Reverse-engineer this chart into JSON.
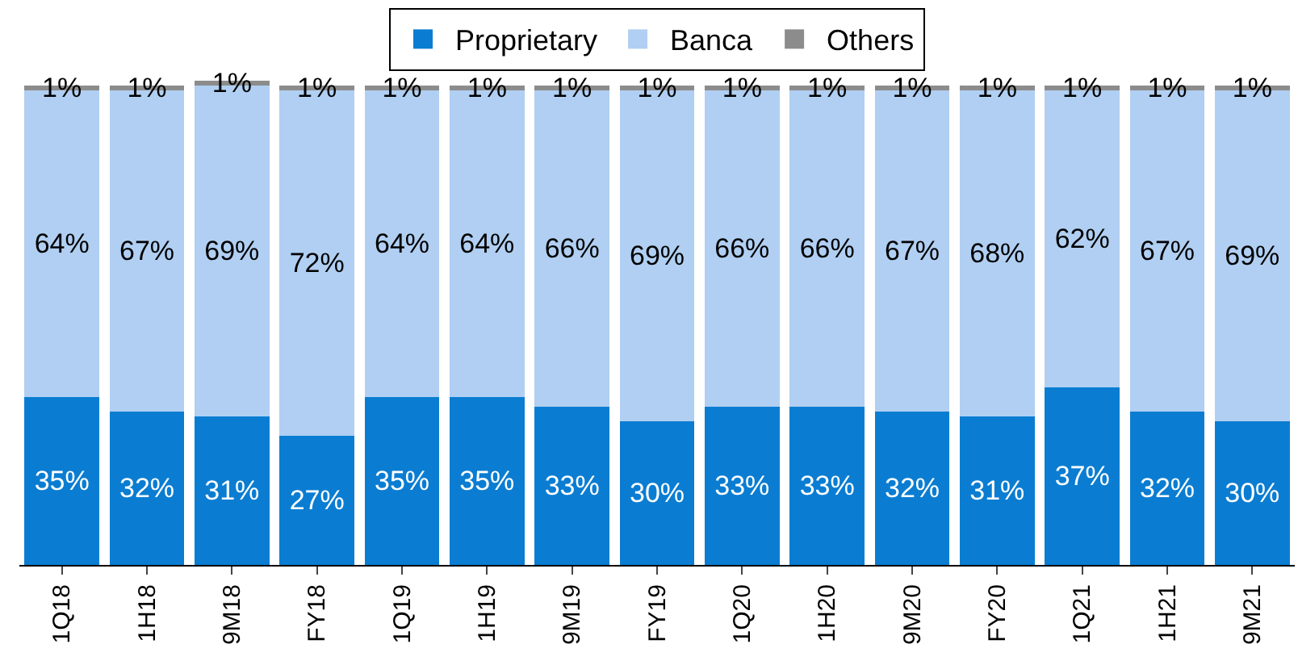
{
  "chart_data": {
    "type": "bar",
    "stacked": true,
    "legend": "top",
    "categories": [
      "1Q18",
      "1H18",
      "9M18",
      "FY18",
      "1Q19",
      "1H19",
      "9M19",
      "FY19",
      "1Q20",
      "1H20",
      "9M20",
      "FY20",
      "1Q21",
      "1H21",
      "9M21"
    ],
    "series": [
      {
        "name": "Proprietary",
        "color": "#0a7dd2",
        "values": [
          35,
          32,
          31,
          27,
          35,
          35,
          33,
          30,
          33,
          33,
          32,
          31,
          37,
          32,
          30
        ],
        "value_labels": [
          "35%",
          "32%",
          "31%",
          "27%",
          "35%",
          "35%",
          "33%",
          "30%",
          "33%",
          "33%",
          "32%",
          "31%",
          "37%",
          "32%",
          "30%"
        ]
      },
      {
        "name": "Banca",
        "color": "#b0cff2",
        "values": [
          64,
          67,
          69,
          72,
          64,
          64,
          66,
          69,
          66,
          66,
          67,
          68,
          62,
          67,
          69
        ],
        "value_labels": [
          "64%",
          "67%",
          "69%",
          "72%",
          "64%",
          "64%",
          "66%",
          "69%",
          "66%",
          "66%",
          "67%",
          "68%",
          "62%",
          "67%",
          "69%"
        ]
      },
      {
        "name": "Others",
        "color": "#8c8c8c",
        "values": [
          1,
          1,
          1,
          1,
          1,
          1,
          1,
          1,
          1,
          1,
          1,
          1,
          1,
          1,
          1
        ],
        "value_labels": [
          "1%",
          "1%",
          "1%",
          "1%",
          "1%",
          "1%",
          "1%",
          "1%",
          "1%",
          "1%",
          "1%",
          "1%",
          "1%",
          "1%",
          "1%"
        ]
      }
    ]
  }
}
